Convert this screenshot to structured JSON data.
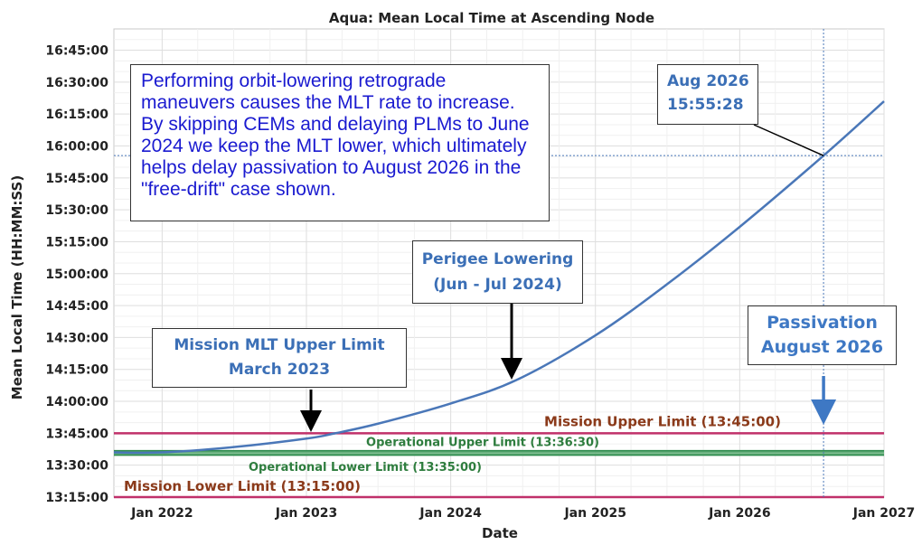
{
  "chart_data": {
    "type": "line",
    "title": "Aqua: Mean Local Time at Ascending Node",
    "xlabel": "Date",
    "ylabel": "Mean Local Time (HH:MM:SS)",
    "x_ticks": [
      "Jan 2022",
      "Jan 2023",
      "Jan 2024",
      "Jan 2025",
      "Jan 2026",
      "Jan 2027"
    ],
    "y_ticks": [
      "13:15:00",
      "13:30:00",
      "13:45:00",
      "14:00:00",
      "14:15:00",
      "14:30:00",
      "14:45:00",
      "15:00:00",
      "15:15:00",
      "15:30:00",
      "15:45:00",
      "16:00:00",
      "16:15:00",
      "16:30:00",
      "16:45:00"
    ],
    "xlim": [
      "2021-09-01",
      "2027-01-01"
    ],
    "ylim": [
      "13:15:00",
      "16:55:00"
    ],
    "grid": true,
    "series": [
      {
        "color": "#4a77b8",
        "points": [
          {
            "x": "2021-09-01",
            "y": "13:36:00"
          },
          {
            "x": "2022-01-01",
            "y": "13:36:00"
          },
          {
            "x": "2022-07-01",
            "y": "13:38:30"
          },
          {
            "x": "2023-01-01",
            "y": "13:42:30"
          },
          {
            "x": "2023-03-15",
            "y": "13:45:00"
          },
          {
            "x": "2023-07-01",
            "y": "13:49:30"
          },
          {
            "x": "2024-01-01",
            "y": "13:59:00"
          },
          {
            "x": "2024-06-15",
            "y": "14:10:00"
          },
          {
            "x": "2025-01-01",
            "y": "14:31:00"
          },
          {
            "x": "2025-07-01",
            "y": "14:55:00"
          },
          {
            "x": "2026-01-01",
            "y": "15:22:00"
          },
          {
            "x": "2026-08-01",
            "y": "15:55:28"
          },
          {
            "x": "2027-01-01",
            "y": "16:21:00"
          }
        ]
      }
    ],
    "limits": [
      {
        "label": "Mission Upper Limit (13:45:00)",
        "value": "13:45:00",
        "color": "#c0306a",
        "label_color": "#8b3a1a"
      },
      {
        "label": "Operational Upper Limit (13:36:30)",
        "value": "13:36:30",
        "color": "#2e8b4e",
        "label_color": "#2e7d3e"
      },
      {
        "label": "Operational Lower Limit (13:35:00)",
        "value": "13:35:00",
        "color": "#2e8b4e",
        "label_color": "#2e7d3e"
      },
      {
        "label": "Mission Lower Limit (13:15:00)",
        "value": "13:15:00",
        "color": "#c0306a",
        "label_color": "#8b3a1a"
      }
    ],
    "reference_lines": {
      "date": "2026-08-01",
      "time": "15:55:28"
    },
    "annotations": {
      "note": "Performing orbit-lowering retrograde maneuvers causes the MLT rate to increase. By skipping CEMs and delaying PLMs to June 2024 we keep the MLT lower, which ultimately helps delay passivation to August 2026 in the \"free-drift\" case shown.",
      "aug_line1": "Aug 2026",
      "aug_line2": "15:55:28",
      "perigee_line1": "Perigee Lowering",
      "perigee_line2": "(Jun - Jul 2024)",
      "mlt_line1": "Mission MLT Upper Limit",
      "mlt_line2": "March 2023",
      "pass_line1": "Passivation",
      "pass_line2": "August 2026"
    }
  }
}
